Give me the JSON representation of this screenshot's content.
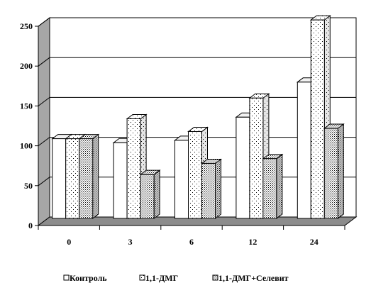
{
  "chart_data": {
    "type": "bar",
    "style": "3d-clustered-column",
    "categories": [
      "0",
      "3",
      "6",
      "12",
      "24"
    ],
    "series": [
      {
        "name": "Контроль",
        "values": [
          100,
          95,
          98,
          127,
          171
        ],
        "fill": "solid-white"
      },
      {
        "name": "1,1-ДМГ",
        "values": [
          100,
          125,
          109,
          151,
          249
        ],
        "fill": "sparse-dots"
      },
      {
        "name": "1,1-ДМГ+Селевит",
        "values": [
          100,
          55,
          69,
          75,
          113
        ],
        "fill": "dense-dots"
      }
    ],
    "ylim": [
      0,
      250
    ],
    "yticks": [
      "0",
      "50",
      "100",
      "150",
      "200",
      "250"
    ],
    "grid": true,
    "legend": "bottom",
    "title": "",
    "xlabel": "",
    "ylabel": "",
    "colors": {
      "wall": "#c8c8c8",
      "floor": "#808080",
      "bar": "#ffffff",
      "side": "#d9d9d9",
      "outline": "#000000"
    }
  }
}
